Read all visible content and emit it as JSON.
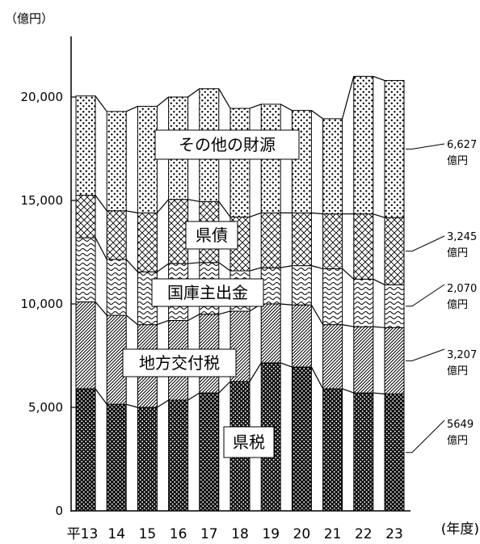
{
  "chart_data": {
    "type": "bar",
    "stacked": true,
    "ylabel": "（億円）",
    "xlabel": "(年度)",
    "ylim": [
      0,
      22000
    ],
    "yticks": [
      0,
      5000,
      10000,
      15000,
      20000
    ],
    "ytick_labels": [
      "0",
      "5,000",
      "10,000",
      "15,000",
      "20,000"
    ],
    "categories": [
      "平13",
      "14",
      "15",
      "16",
      "17",
      "18",
      "19",
      "20",
      "21",
      "22",
      "23"
    ],
    "series": [
      {
        "name": "県税",
        "pattern": "dark-dots",
        "values": [
          5900,
          5150,
          5000,
          5350,
          5700,
          6250,
          7150,
          6950,
          5900,
          5700,
          5649
        ]
      },
      {
        "name": "地方交付税",
        "pattern": "diagonal",
        "values": [
          4200,
          4300,
          4000,
          3850,
          3800,
          3400,
          2850,
          3000,
          3100,
          3200,
          3207
        ]
      },
      {
        "name": "国庫主出金",
        "pattern": "wavy",
        "values": [
          3100,
          2700,
          2550,
          2750,
          2500,
          1950,
          1750,
          1900,
          2700,
          2300,
          2070
        ]
      },
      {
        "name": "県債",
        "pattern": "crosshatch",
        "values": [
          2050,
          2350,
          2850,
          3100,
          2950,
          2600,
          2650,
          2550,
          2650,
          3150,
          3245
        ]
      },
      {
        "name": "その他の財源",
        "pattern": "light-dots",
        "values": [
          4800,
          4800,
          5150,
          4950,
          5450,
          5250,
          5250,
          4950,
          4600,
          6650,
          6627
        ]
      }
    ],
    "end_labels": [
      {
        "series": "その他の財源",
        "value": "6,627",
        "unit": "億円"
      },
      {
        "series": "県債",
        "value": "3,245",
        "unit": "億円"
      },
      {
        "series": "国庫主出金",
        "value": "2,070",
        "unit": "億円"
      },
      {
        "series": "地方交付税",
        "value": "3,207",
        "unit": "億円"
      },
      {
        "series": "県税",
        "value": "5649",
        "unit": "億円"
      }
    ]
  }
}
